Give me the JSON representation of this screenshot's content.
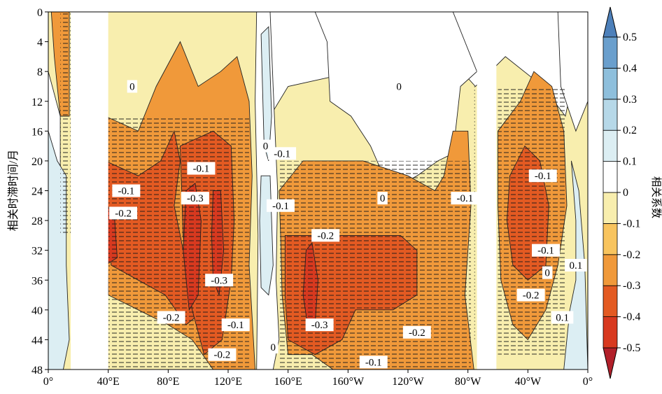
{
  "chart_data": {
    "type": "heatmap",
    "title": "",
    "xlabel": "",
    "ylabel": "相关时滞时间/月",
    "colorbar_label": "相关系数",
    "x_ticks": [
      "0°",
      "40°E",
      "80°E",
      "120°E",
      "160°E",
      "160°W",
      "120°W",
      "80°W",
      "40°W",
      "0°"
    ],
    "x_lim_deg_east": [
      0,
      360
    ],
    "y_ticks": [
      0,
      4,
      8,
      12,
      16,
      20,
      24,
      28,
      32,
      36,
      40,
      44,
      48
    ],
    "y_lim": [
      0,
      48
    ],
    "y_inverted": true,
    "colorbar_levels": [
      -0.5,
      -0.4,
      -0.3,
      -0.2,
      -0.1,
      0,
      0.1,
      0.2,
      0.3,
      0.4,
      0.5
    ],
    "colorbar_colors": [
      "#b2202a",
      "#d8391f",
      "#e35a22",
      "#f0993a",
      "#f8c45e",
      "#f8eeae",
      "#ffffff",
      "#dceef3",
      "#b6d8e8",
      "#8ebfdc",
      "#6a9fcd",
      "#4d80ba"
    ],
    "hatching": "dashed horizontal lines over significant regions",
    "missing_bands_deg_east": [
      [
        15,
        40
      ],
      [
        286,
        299
      ]
    ],
    "contour_labels": [
      {
        "text": "0",
        "lon": 56,
        "lag": 10
      },
      {
        "text": "0",
        "lon": 234,
        "lag": 10
      },
      {
        "text": "0",
        "lon": 145,
        "lag": 18
      },
      {
        "text": "-0.1",
        "lon": 156,
        "lag": 19
      },
      {
        "text": "-0.1",
        "lon": 102,
        "lag": 21
      },
      {
        "text": "-0.1",
        "lon": 52,
        "lag": 24
      },
      {
        "text": "-0.3",
        "lon": 98,
        "lag": 25
      },
      {
        "text": "-0.2",
        "lon": 50,
        "lag": 27
      },
      {
        "text": "-0.1",
        "lon": 155,
        "lag": 26
      },
      {
        "text": "0",
        "lon": 223,
        "lag": 25
      },
      {
        "text": "-0.1",
        "lon": 278,
        "lag": 25
      },
      {
        "text": "-0.1",
        "lon": 330,
        "lag": 22
      },
      {
        "text": "-0.2",
        "lon": 185,
        "lag": 30
      },
      {
        "text": "-0.1",
        "lon": 332,
        "lag": 32
      },
      {
        "text": "0.1",
        "lon": 352,
        "lag": 34
      },
      {
        "text": "0",
        "lon": 333,
        "lag": 35
      },
      {
        "text": "-0.3",
        "lon": 114,
        "lag": 36
      },
      {
        "text": "-0.2",
        "lon": 322,
        "lag": 38
      },
      {
        "text": "-0.2",
        "lon": 82,
        "lag": 41
      },
      {
        "text": "-0.1",
        "lon": 125,
        "lag": 42
      },
      {
        "text": "-0.3",
        "lon": 181,
        "lag": 42
      },
      {
        "text": "-0.2",
        "lon": 246,
        "lag": 43
      },
      {
        "text": "0.1",
        "lon": 343,
        "lag": 41
      },
      {
        "text": "-0.2",
        "lon": 116,
        "lag": 46
      },
      {
        "text": "0",
        "lon": 150,
        "lag": 45
      },
      {
        "text": "-0.1",
        "lon": 217,
        "lag": 47
      }
    ]
  }
}
